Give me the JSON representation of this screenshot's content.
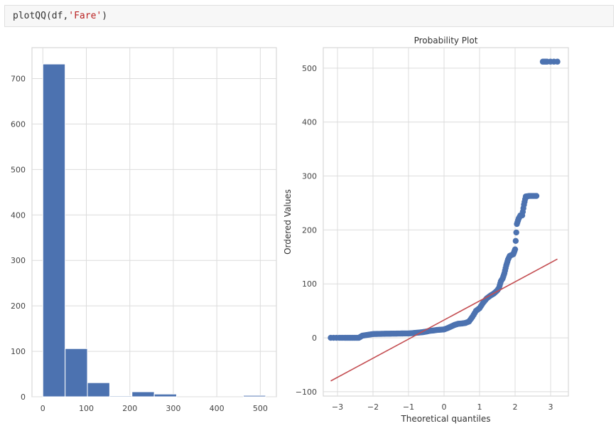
{
  "notebook": {
    "cell_code": {
      "func": "plotQQ(df,",
      "arg": "'Fare'",
      "close": ")"
    }
  },
  "chart_data": [
    {
      "type": "bar",
      "subtype": "histogram",
      "bins": [
        {
          "x0": 0,
          "x1": 51.2,
          "count": 732
        },
        {
          "x0": 51.2,
          "x1": 102.5,
          "count": 106
        },
        {
          "x0": 102.5,
          "x1": 153.7,
          "count": 31
        },
        {
          "x0": 153.7,
          "x1": 204.9,
          "count": 2
        },
        {
          "x0": 204.9,
          "x1": 256.2,
          "count": 11
        },
        {
          "x0": 256.2,
          "x1": 307.4,
          "count": 6
        },
        {
          "x0": 307.4,
          "x1": 358.6,
          "count": 0
        },
        {
          "x0": 358.6,
          "x1": 409.9,
          "count": 0
        },
        {
          "x0": 409.9,
          "x1": 461.1,
          "count": 0
        },
        {
          "x0": 461.1,
          "x1": 512.3,
          "count": 3
        }
      ],
      "xticks": [
        0,
        100,
        200,
        300,
        400,
        500
      ],
      "yticks": [
        0,
        100,
        200,
        300,
        400,
        500,
        600,
        700
      ],
      "xlim": [
        -25,
        537
      ],
      "ylim": [
        0,
        768
      ],
      "title": "",
      "xlabel": "",
      "ylabel": "",
      "grid": true,
      "color": "#4c72b0"
    },
    {
      "type": "scatter",
      "title": "Probability Plot",
      "xlabel": "Theoretical quantiles",
      "ylabel": "Ordered Values",
      "xlim": [
        -3.4,
        3.5
      ],
      "ylim": [
        -108,
        538
      ],
      "xticks": [
        "−3",
        "−2",
        "−1",
        "0",
        "1",
        "2",
        "3"
      ],
      "yticks": [
        "−100",
        "0",
        "100",
        "200",
        "300",
        "400",
        "500"
      ],
      "grid": true,
      "series": [
        {
          "kind": "points",
          "color": "#4c72b0",
          "points": [
            [
              -3.19,
              0
            ],
            [
              -2.95,
              0
            ],
            [
              -2.8,
              0
            ],
            [
              -2.7,
              0
            ],
            [
              -2.6,
              0
            ],
            [
              -2.5,
              0
            ],
            [
              -2.4,
              0
            ],
            [
              -2.3,
              4
            ],
            [
              -2.2,
              5
            ],
            [
              -2.1,
              6
            ],
            [
              -2.0,
              7
            ],
            [
              -1.9,
              7.2
            ],
            [
              -1.8,
              7.3
            ],
            [
              -1.7,
              7.5
            ],
            [
              -1.6,
              7.6
            ],
            [
              -1.5,
              7.7
            ],
            [
              -1.4,
              7.8
            ],
            [
              -1.3,
              7.9
            ],
            [
              -1.2,
              8.0
            ],
            [
              -1.1,
              8.05
            ],
            [
              -1.0,
              8.1
            ],
            [
              -0.9,
              8.6
            ],
            [
              -0.8,
              9.2
            ],
            [
              -0.7,
              9.8
            ],
            [
              -0.6,
              10.5
            ],
            [
              -0.5,
              11.5
            ],
            [
              -0.4,
              13
            ],
            [
              -0.3,
              13.5
            ],
            [
              -0.2,
              14.5
            ],
            [
              -0.1,
              15
            ],
            [
              0.0,
              15.5
            ],
            [
              0.1,
              18
            ],
            [
              0.2,
              21
            ],
            [
              0.3,
              24
            ],
            [
              0.4,
              26
            ],
            [
              0.5,
              26.5
            ],
            [
              0.6,
              27.5
            ],
            [
              0.7,
              30
            ],
            [
              0.8,
              39
            ],
            [
              0.9,
              50
            ],
            [
              1.0,
              55
            ],
            [
              1.1,
              65
            ],
            [
              1.2,
              73
            ],
            [
              1.3,
              78
            ],
            [
              1.4,
              82
            ],
            [
              1.5,
              88
            ],
            [
              1.55,
              93
            ],
            [
              1.6,
              105
            ],
            [
              1.65,
              110
            ],
            [
              1.7,
              120
            ],
            [
              1.75,
              134
            ],
            [
              1.8,
              145
            ],
            [
              1.85,
              152
            ],
            [
              1.95,
              155
            ],
            [
              2.0,
              164
            ],
            [
              2.05,
              211
            ],
            [
              2.1,
              221
            ],
            [
              2.15,
              227
            ],
            [
              2.2,
              227
            ],
            [
              2.25,
              247
            ],
            [
              2.3,
              262
            ],
            [
              2.4,
              263
            ],
            [
              2.5,
              263
            ],
            [
              2.6,
              263
            ],
            [
              2.78,
              512
            ],
            [
              2.9,
              512
            ],
            [
              3.19,
              512
            ]
          ]
        },
        {
          "kind": "fit-line",
          "color": "#c44e52",
          "from": [
            -3.19,
            -80
          ],
          "to": [
            3.19,
            146
          ]
        }
      ]
    }
  ]
}
